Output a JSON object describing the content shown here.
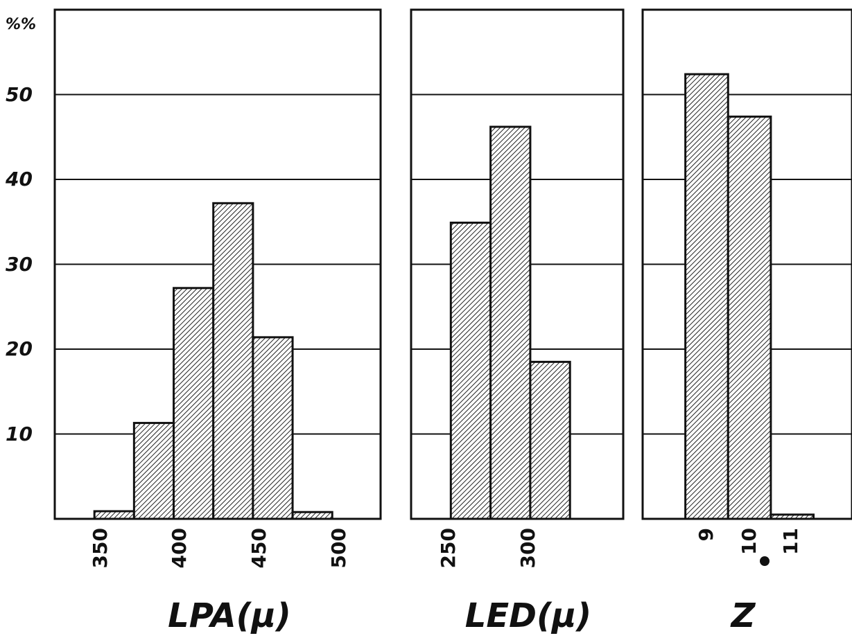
{
  "chart_data": [
    {
      "type": "bar",
      "xlabel": "LPA(µ)",
      "ylabel": "%%",
      "ylim": [
        0,
        60
      ],
      "yticks": [
        "10",
        "20",
        "30",
        "40",
        "50"
      ],
      "xticks": [
        "350",
        "400",
        "450",
        "500"
      ],
      "bins": [
        [
          362.5,
          387.5
        ],
        [
          387.5,
          412.5
        ],
        [
          412.5,
          437.5
        ],
        [
          437.5,
          462.5
        ],
        [
          462.5,
          487.5
        ],
        [
          487.5,
          512.5
        ]
      ],
      "values": [
        0.9,
        11.3,
        27.2,
        37.2,
        21.4,
        0.8
      ],
      "grid": true
    },
    {
      "type": "bar",
      "xlabel": "LED(µ)",
      "ylim": [
        0,
        60
      ],
      "xticks": [
        "250",
        "300"
      ],
      "bins": [
        [
          247.5,
          272.5
        ],
        [
          272.5,
          297.5
        ],
        [
          297.5,
          322.5
        ]
      ],
      "values": [
        34.9,
        46.2,
        18.5
      ],
      "grid": true
    },
    {
      "type": "bar",
      "xlabel": "Z",
      "ylim": [
        0,
        60
      ],
      "xticks": [
        "9",
        "10",
        "11"
      ],
      "bins": [
        [
          8.5,
          9.5
        ],
        [
          9.5,
          10.5
        ],
        [
          10.5,
          11.5
        ]
      ],
      "values": [
        52.4,
        47.4,
        0.5
      ],
      "grid": true
    }
  ]
}
